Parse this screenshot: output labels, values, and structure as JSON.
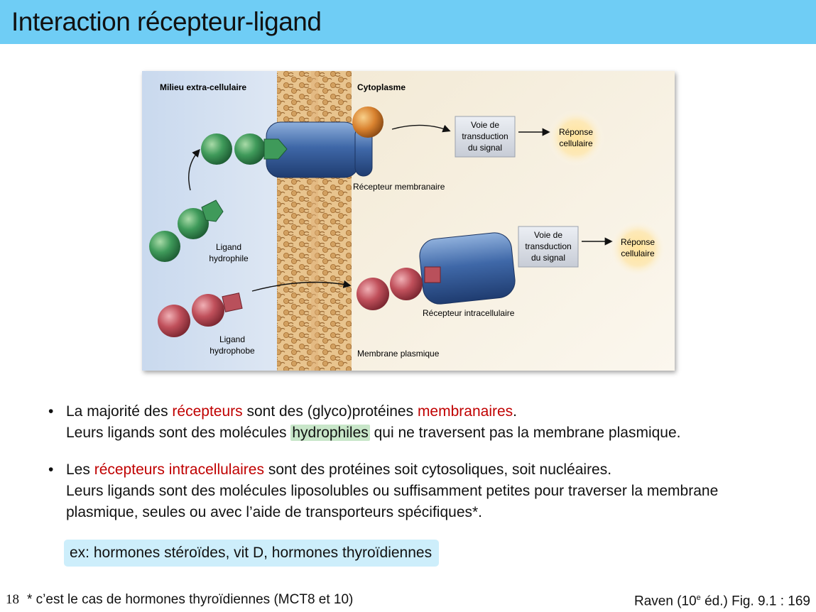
{
  "title": "Interaction récepteur-ligand",
  "figure": {
    "labels": {
      "extracellular": "Milieu extra-cellulaire",
      "cytoplasm": "Cytoplasme",
      "membrane_receptor": "Récepteur membranaire",
      "intracellular_receptor": "Récepteur intracellulaire",
      "membrane": "Membrane plasmique",
      "hydrophilic_ligand": [
        "Ligand",
        "hydrophile"
      ],
      "hydrophobic_ligand": [
        "Ligand",
        "hydrophobe"
      ],
      "pathway": [
        "Voie de",
        "transduction",
        "du signal"
      ],
      "response": [
        "Réponse",
        "cellulaire"
      ]
    }
  },
  "bullets": [
    {
      "line1": {
        "a": "La majorité des ",
        "b": "récepteurs",
        "c": " sont des (glyco)protéines ",
        "d": "membranaires",
        "e": "."
      },
      "line2": {
        "a": "Leurs ligands sont des molécules ",
        "b": "hydrophiles",
        "c": " qui ne traversent pas la membrane plasmique."
      }
    },
    {
      "line1": {
        "a": "Les ",
        "b": "récepteurs intracellulaires",
        "c": " sont des protéines soit cytosoliques, soit nucléaires."
      },
      "line2": "Leurs ligands sont des molécules liposolubles ou suffisamment petites pour traverser la membrane",
      "line3": "plasmique, seules ou avec l’aide de transporteurs spécifiques*."
    }
  ],
  "bullet_symbol": "•",
  "example": "ex: hormones stéroïdes, vit D, hormones thyroïdiennes",
  "slide_number": "18",
  "footnote": "* c’est le cas de hormones thyroïdiennes (MCT8 et 10)",
  "reference": {
    "a": "Raven (10",
    "sup": "e",
    "b": " éd.) Fig. 9.1 : 169"
  }
}
